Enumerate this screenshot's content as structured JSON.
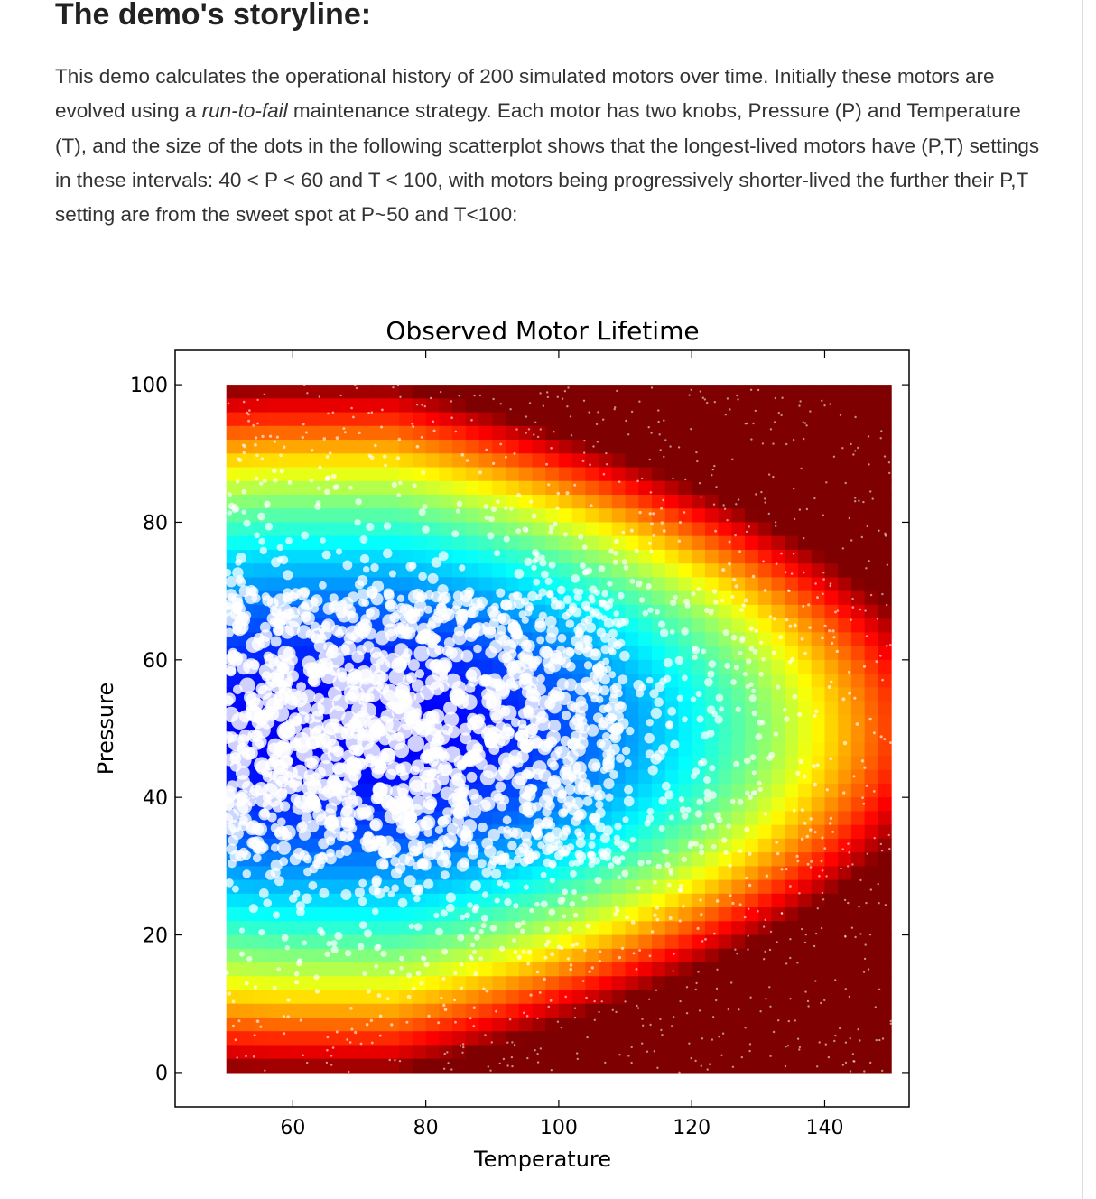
{
  "article": {
    "heading": "The demo's storyline:",
    "paragraph": {
      "part1": "This demo calculates the operational history of 200 simulated motors over time. Initially these motors are evolved using a ",
      "emphasis": "run-to-fail",
      "part2": " maintenance strategy. Each motor has two knobs, Pressure (P) and Temperature (T), and the size of the dots in the following scatterplot shows that the longest-lived motors have (P,T) settings in these intervals: 40 < P < 60 and T < 100, with motors being progressively shorter-lived the further their P,T setting are from the sweet spot at P~50 and T<100:"
    }
  },
  "colors": {
    "text": "#333333",
    "heading": "#222222",
    "colormap": [
      "#00007f",
      "#0000ff",
      "#007fff",
      "#00ffff",
      "#7fff7f",
      "#ffff00",
      "#ff7f00",
      "#ff0000",
      "#7f0000"
    ],
    "dot": "#ffffff"
  },
  "chart_data": {
    "type": "scatter",
    "title": "Observed Motor Lifetime",
    "xlabel": "Temperature",
    "ylabel": "Pressure",
    "xlim": [
      42.3,
      152.7
    ],
    "ylim": [
      -5,
      105
    ],
    "xticks": [
      60,
      80,
      100,
      120,
      140
    ],
    "yticks": [
      0,
      20,
      40,
      60,
      80,
      100
    ],
    "background": {
      "kind": "heatmap",
      "colormap": "jet",
      "x_range": [
        50,
        150
      ],
      "y_range": [
        0,
        100
      ],
      "sweet_spot": {
        "pressure": 50,
        "temperature_max": 100
      },
      "note": "lifetime is longest near P~50 and T<100 (blue) and shortest at the extremes (red)"
    },
    "points": {
      "count_approx": 2600,
      "x_range": [
        50,
        150
      ],
      "y_range": [
        0,
        100
      ],
      "marker": "white circle, size proportional to lifetime",
      "dense_region": {
        "x": [
          50,
          110
        ],
        "y": [
          30,
          70
        ]
      }
    },
    "grid": false,
    "legend": null
  }
}
